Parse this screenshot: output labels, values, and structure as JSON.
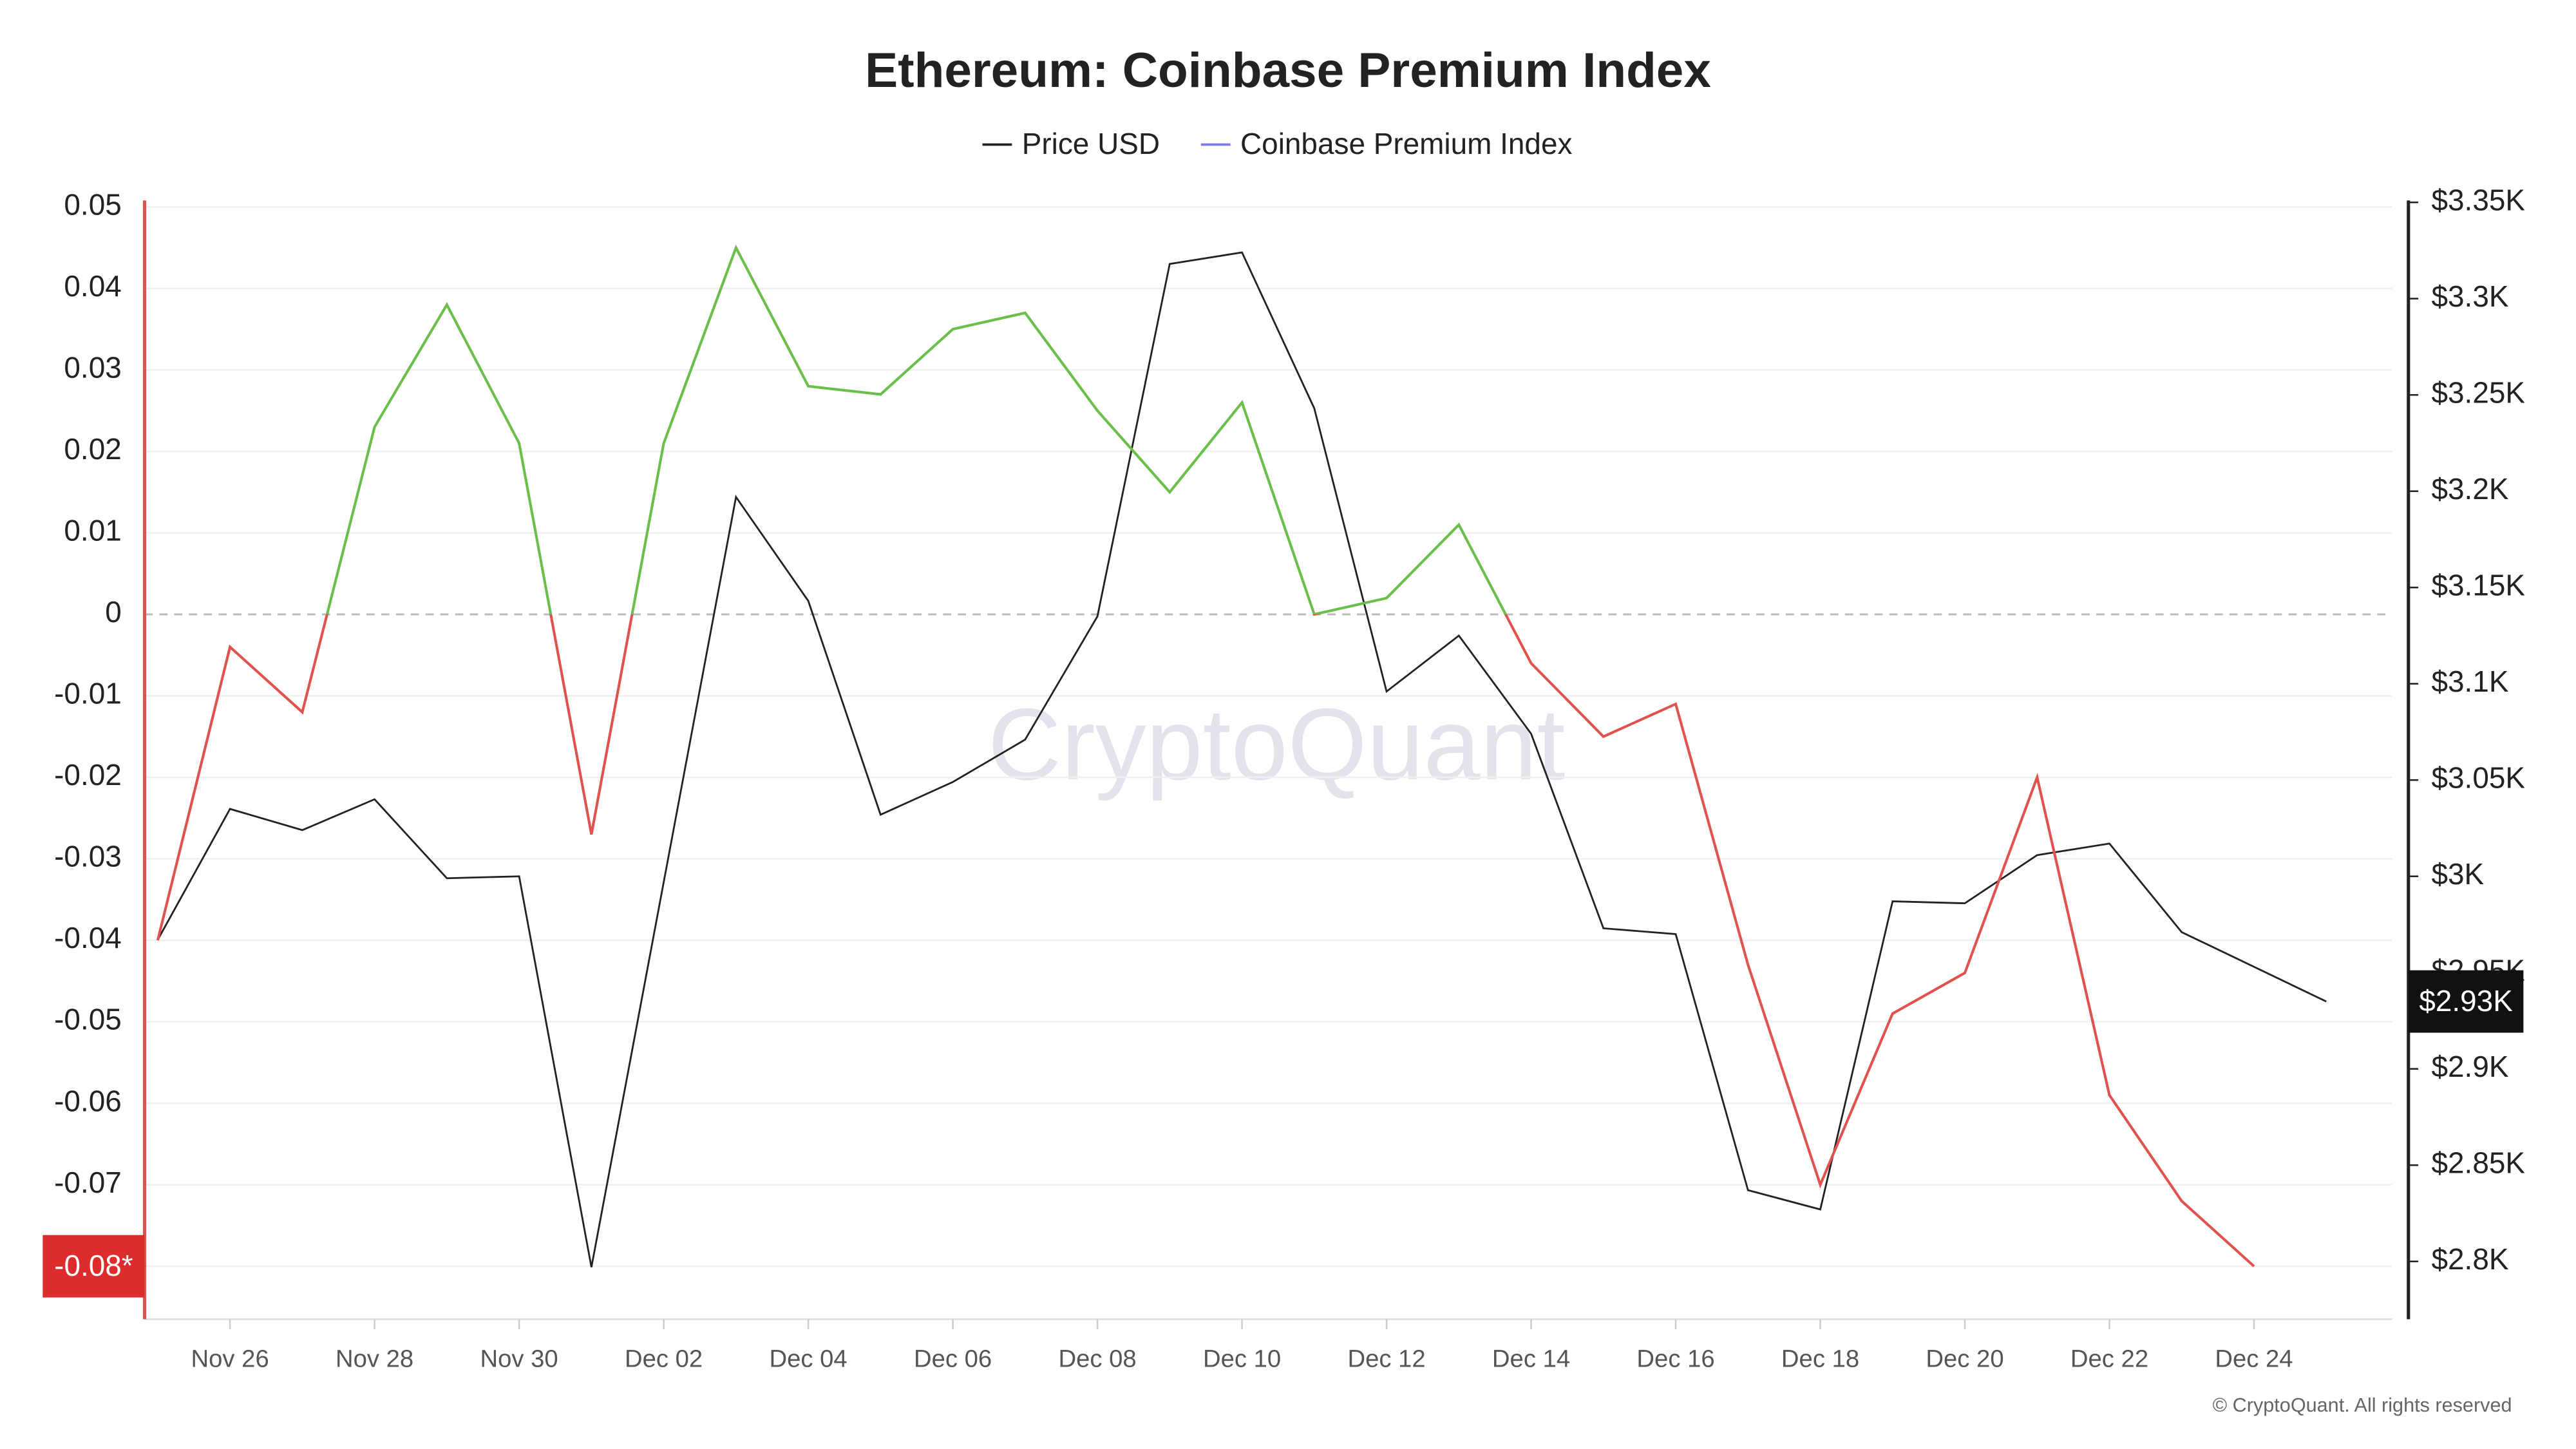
{
  "chart_data": {
    "type": "line",
    "title": "Ethereum: Coinbase Premium Index",
    "watermark": "CryptoQuant",
    "footer": "© CryptoQuant. All rights reserved",
    "categories": [
      null,
      "Nov 26",
      null,
      "Nov 28",
      null,
      "Nov 30",
      null,
      "Dec 02",
      null,
      "Dec 04",
      null,
      "Dec 06",
      null,
      "Dec 08",
      null,
      "Dec 10",
      null,
      "Dec 12",
      null,
      "Dec 14",
      null,
      "Dec 16",
      null,
      "Dec 18",
      null,
      "Dec 20",
      null,
      "Dec 22",
      null,
      "Dec 24",
      null
    ],
    "series": [
      {
        "name": "Price USD",
        "color": "#222222",
        "axis": "y2",
        "values": [
          2967,
          3035,
          3024,
          3040,
          2999,
          3000,
          2797,
          2997,
          3197,
          3143,
          3032,
          3049,
          3071,
          3135,
          3318,
          3324,
          3243,
          3096,
          3125,
          3074,
          2973,
          2970,
          2837,
          2827,
          2987,
          2986,
          3011,
          3017,
          2971,
          2953,
          2935
        ]
      },
      {
        "name": "Coinbase Premium Index",
        "color": "#7b7bf0",
        "positive_color": "#6abf4b",
        "negative_color": "#e0524d",
        "values": [
          -0.04,
          -0.004,
          -0.012,
          0.023,
          0.038,
          0.021,
          -0.027,
          0.021,
          0.045,
          0.028,
          0.027,
          0.035,
          0.037,
          0.025,
          0.015,
          0.026,
          0.0,
          0.002,
          0.011,
          -0.006,
          -0.015,
          -0.011,
          -0.043,
          -0.07,
          -0.049,
          -0.044,
          -0.02,
          -0.059,
          -0.072,
          -0.08,
          null
        ]
      }
    ],
    "ylim": [
      -0.0865,
      0.0508
    ],
    "yticks": [
      0.05,
      0.04,
      0.03,
      0.02,
      0.01,
      0,
      -0.01,
      -0.02,
      -0.03,
      -0.04,
      -0.05,
      -0.06,
      -0.07
    ],
    "y2lim": [
      2770,
      3351
    ],
    "y2ticks": [
      {
        "value": 3350,
        "label": "$3.35K"
      },
      {
        "value": 3300,
        "label": "$3.3K"
      },
      {
        "value": 3250,
        "label": "$3.25K"
      },
      {
        "value": 3200,
        "label": "$3.2K"
      },
      {
        "value": 3150,
        "label": "$3.15K"
      },
      {
        "value": 3100,
        "label": "$3.1K"
      },
      {
        "value": 3050,
        "label": "$3.05K"
      },
      {
        "value": 3000,
        "label": "$3K"
      },
      {
        "value": 2950,
        "label": "$2.95K"
      },
      {
        "value": 2900,
        "label": "$2.9K"
      },
      {
        "value": 2850,
        "label": "$2.85K"
      },
      {
        "value": 2800,
        "label": "$2.8K"
      }
    ],
    "premium_tag": {
      "value": -0.08,
      "label": "-0.08*"
    },
    "price_tag": {
      "value": 2935,
      "label": "$2.93K"
    },
    "grid": true
  }
}
